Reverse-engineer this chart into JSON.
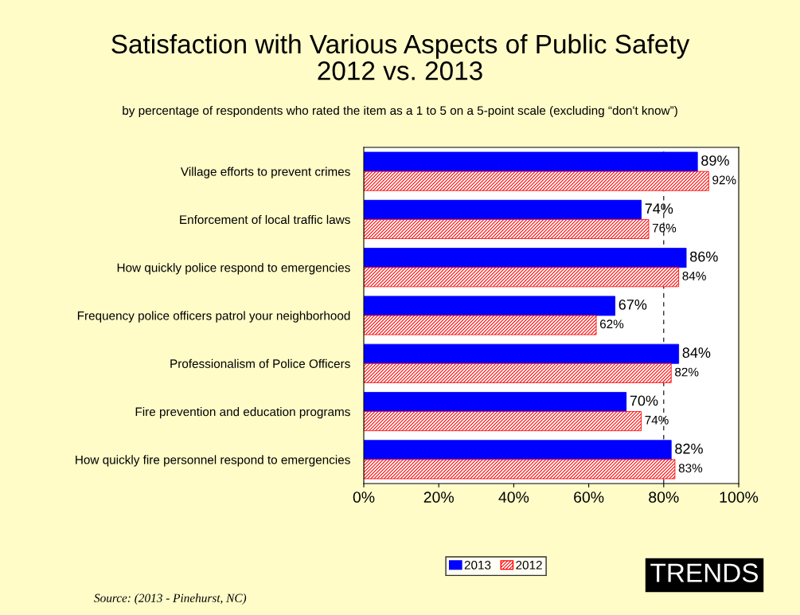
{
  "chart_data": {
    "type": "bar",
    "orientation": "horizontal",
    "title": "Satisfaction with Various Aspects of Public Safety\n2012 vs. 2013",
    "subtitle": "by percentage of respondents who rated the item as a 1 to 5 on a 5-point scale (excluding “don't know”)",
    "categories": [
      "Village efforts to prevent crimes",
      "Enforcement of local traffic laws",
      "How quickly police respond to emergencies",
      "Frequency police officers patrol your neighborhood",
      "Professionalism of Police Officers",
      "Fire prevention and education programs",
      "How quickly fire personnel respond to emergencies"
    ],
    "series": [
      {
        "name": "2013",
        "color": "#0000ff",
        "values": [
          89,
          74,
          86,
          67,
          84,
          70,
          82
        ],
        "value_labels": [
          "89%",
          "74%",
          "86%",
          "67%",
          "84%",
          "70%",
          "82%"
        ]
      },
      {
        "name": "2012",
        "color": "#ff0000",
        "values": [
          92,
          76,
          84,
          62,
          82,
          74,
          83
        ],
        "value_labels": [
          "92%",
          "76%",
          "84%",
          "62%",
          "82%",
          "74%",
          "83%"
        ]
      }
    ],
    "xlim": [
      0,
      100
    ],
    "xticks": [
      {
        "value": 0,
        "label": "0%"
      },
      {
        "value": 20,
        "label": "20%"
      },
      {
        "value": 40,
        "label": "40%"
      },
      {
        "value": 60,
        "label": "60%"
      },
      {
        "value": 80,
        "label": "80%"
      },
      {
        "value": 100,
        "label": "100%"
      }
    ],
    "ref_lines": [
      {
        "axis": "x",
        "value": 80,
        "line_style": "dashed",
        "color": "#000000"
      }
    ],
    "legend": "bottom",
    "grid": false,
    "annotations": [
      "Source: (2013 - Pinehurst, NC)",
      "TRENDS"
    ]
  }
}
